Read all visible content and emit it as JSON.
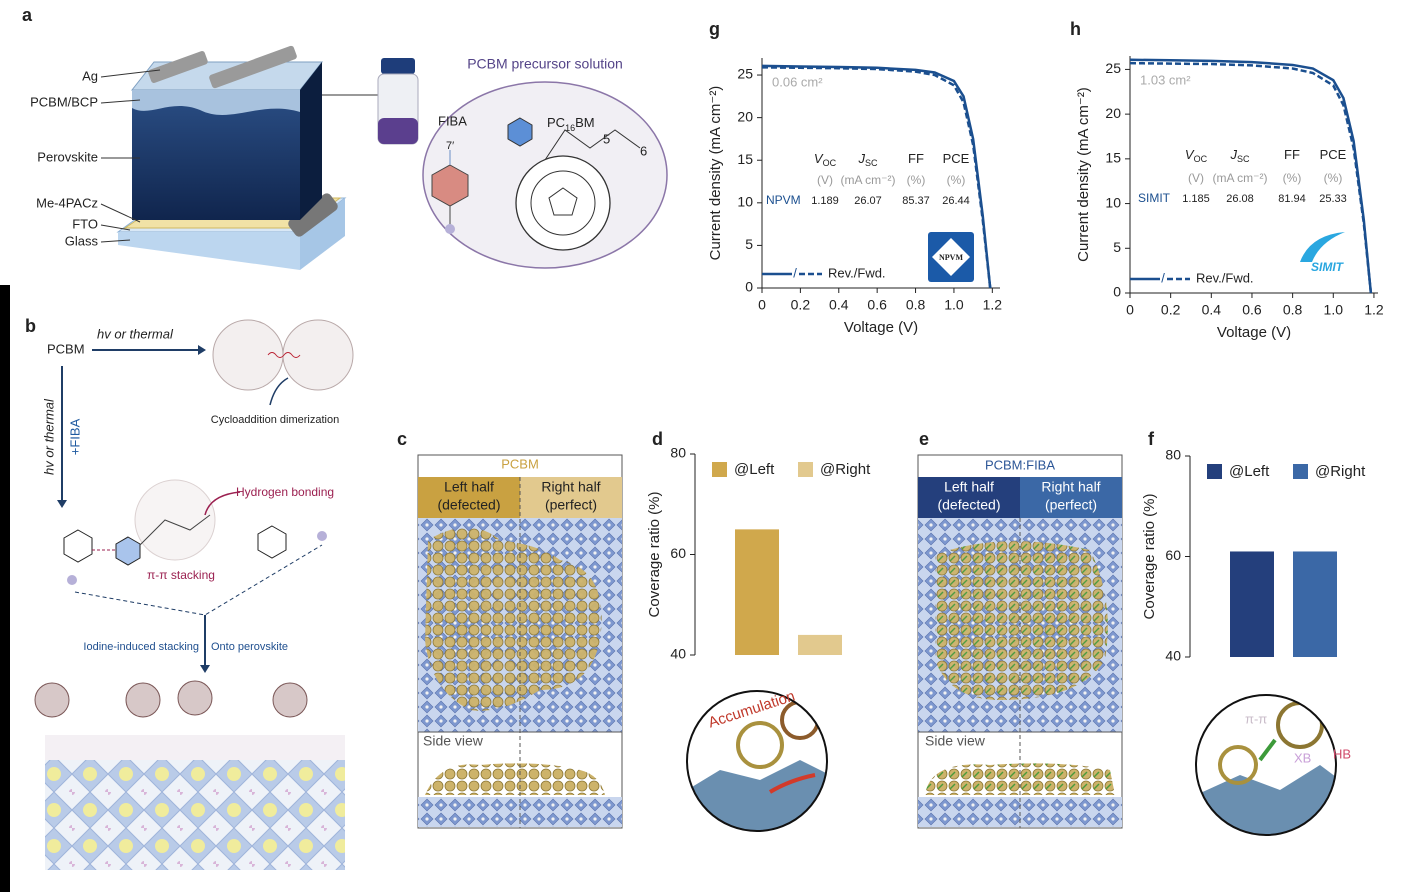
{
  "panels": {
    "a": {
      "label": "a",
      "layers": [
        "Ag",
        "PCBM/BCP",
        "Perovskite",
        "Me-4PACz",
        "FTO",
        "Glass"
      ],
      "solution_title": "PCBM precursor solution",
      "fiba": "FIBA",
      "fiba_position": "7′",
      "pcbm": {
        "main": "PC",
        "sub": "16",
        "suffix": "BM"
      },
      "positions": [
        "5",
        "6"
      ]
    },
    "b": {
      "label": "b",
      "pcbm": "PCBM",
      "route_top": "hv or thermal",
      "dimer": "Cycloaddition dimerization",
      "route_side": "hv or thermal",
      "additive": "+FIBA",
      "hydrogen": "Hydrogen bonding",
      "stacking": "π-π stacking",
      "iodine": "Iodine-induced stacking",
      "onto": "Onto perovskite"
    },
    "c": {
      "label": "c",
      "title": "PCBM",
      "left": [
        "Left half",
        "(defected)"
      ],
      "right": [
        "Right half",
        "(perfect)"
      ],
      "side": "Side view"
    },
    "e": {
      "label": "e",
      "title": "PCBM:FIBA",
      "left": [
        "Left half",
        "(defected)"
      ],
      "right": [
        "Right half",
        "(perfect)"
      ],
      "side": "Side view"
    },
    "d_inset": {
      "text": "Accumulation"
    },
    "f_inset": {
      "labels": [
        "π-π",
        "XB",
        "HB"
      ]
    }
  },
  "chart_data": [
    {
      "type": "line",
      "panel": "g",
      "xlabel": "Voltage (V)",
      "ylabel": "Current density (mA cm⁻²)",
      "xlim": [
        0,
        1.24
      ],
      "ylim": [
        0,
        27
      ],
      "xticks": [
        0,
        0.2,
        0.4,
        0.6,
        0.8,
        {
          "value": 1,
          "label": "1.0"
        },
        1.2
      ],
      "yticks": [
        0,
        5,
        10,
        15,
        20,
        25
      ],
      "x": [
        0,
        0.2,
        0.4,
        0.6,
        0.8,
        0.9,
        1.0,
        1.05,
        1.1,
        1.15,
        1.189
      ],
      "series": [
        {
          "color": "#1b4f8f",
          "style": "solid",
          "values": [
            26.07,
            26.0,
            25.95,
            25.85,
            25.6,
            25.3,
            24.3,
            22.5,
            17.5,
            8.5,
            0
          ]
        },
        {
          "color": "#1b4f8f",
          "style": "dashed",
          "values": [
            25.9,
            25.85,
            25.8,
            25.7,
            25.4,
            25.0,
            23.8,
            21.8,
            16.8,
            8.0,
            0
          ]
        }
      ],
      "legend_label": "Rev./Fwd.",
      "annotation": "0.06 cm²",
      "logo": "NPVM",
      "table": {
        "columns": [
          {
            "symbol": "V",
            "sub": "OC",
            "unit": "(V)"
          },
          {
            "symbol": "J",
            "sub": "SC",
            "unit": "(mA cm⁻²)"
          },
          {
            "symbol": "FF",
            "unit": "(%)"
          },
          {
            "symbol": "PCE",
            "unit": "(%)"
          }
        ],
        "rows": [
          {
            "name": "NPVM",
            "values": [
              1.189,
              26.07,
              85.37,
              26.44
            ]
          }
        ]
      }
    },
    {
      "type": "line",
      "panel": "h",
      "xlabel": "Voltage (V)",
      "ylabel": "Current density (mA cm⁻²)",
      "xlim": [
        0,
        1.22
      ],
      "ylim": [
        0,
        26.5
      ],
      "xticks": [
        0,
        0.2,
        0.4,
        0.6,
        0.8,
        {
          "value": 1,
          "label": "1.0"
        },
        1.2
      ],
      "yticks": [
        0,
        5,
        10,
        15,
        20,
        25
      ],
      "x": [
        0,
        0.2,
        0.4,
        0.6,
        0.8,
        0.9,
        1.0,
        1.05,
        1.1,
        1.15,
        1.185
      ],
      "series": [
        {
          "color": "#1b4f8f",
          "style": "solid",
          "values": [
            26.08,
            26.02,
            25.95,
            25.82,
            25.5,
            25.1,
            23.8,
            21.8,
            17.0,
            8.2,
            0
          ]
        },
        {
          "color": "#1b4f8f",
          "style": "dashed",
          "values": [
            25.7,
            25.65,
            25.6,
            25.45,
            25.1,
            24.6,
            23.2,
            21.0,
            16.2,
            7.8,
            0
          ]
        }
      ],
      "legend_label": "Rev./Fwd.",
      "annotation": "1.03 cm²",
      "logo": "SIMIT",
      "table": {
        "columns": [
          {
            "symbol": "V",
            "sub": "OC",
            "unit": "(V)"
          },
          {
            "symbol": "J",
            "sub": "SC",
            "unit": "(mA cm⁻²)"
          },
          {
            "symbol": "FF",
            "unit": "(%)"
          },
          {
            "symbol": "PCE",
            "unit": "(%)"
          }
        ],
        "rows": [
          {
            "name": "SIMIT",
            "values": [
              1.185,
              26.08,
              81.94,
              25.33
            ]
          }
        ]
      }
    },
    {
      "type": "bar",
      "panel": "d",
      "ylabel": "Coverage ratio (%)",
      "ylim": [
        40,
        80
      ],
      "yticks": [
        40,
        60,
        80
      ],
      "categories": [
        null
      ],
      "series": [
        {
          "name": "@Left",
          "color": "#d0a84c",
          "values": [
            65
          ]
        },
        {
          "name": "@Right",
          "color": "#e2c98e",
          "values": [
            44
          ]
        }
      ]
    },
    {
      "type": "bar",
      "panel": "f",
      "ylabel": "Coverage ratio (%)",
      "ylim": [
        40,
        80
      ],
      "yticks": [
        40,
        60,
        80
      ],
      "categories": [
        null
      ],
      "series": [
        {
          "name": "@Left",
          "color": "#243f7c",
          "values": [
            61
          ]
        },
        {
          "name": "@Right",
          "color": "#3b68a6",
          "values": [
            61
          ]
        }
      ]
    }
  ]
}
